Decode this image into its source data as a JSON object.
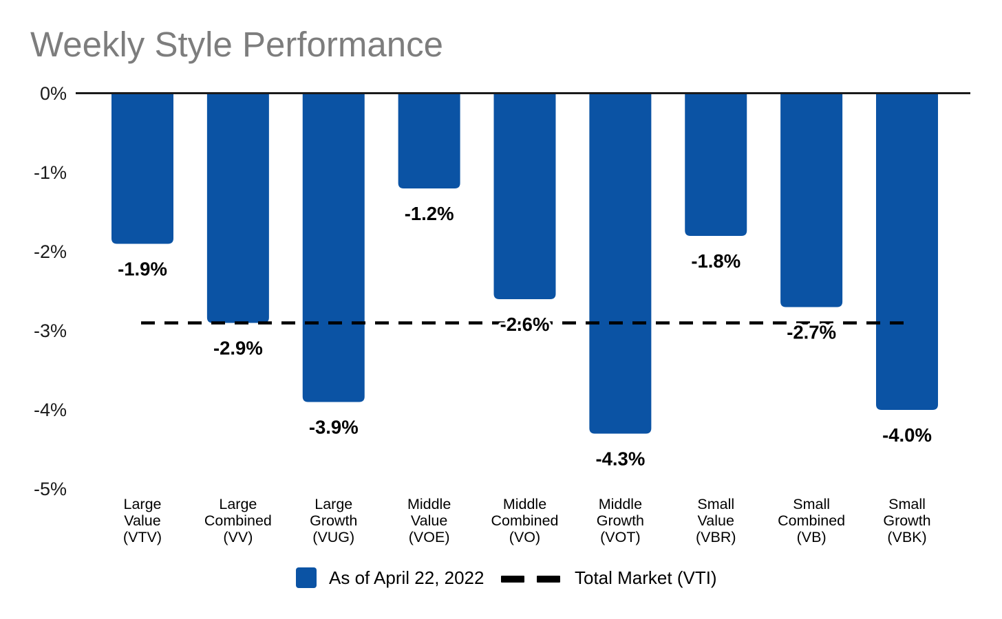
{
  "title": "Weekly Style Performance",
  "colors": {
    "bar": "#0b53a4",
    "reference_line": "#000000",
    "axis_line": "#1a1a1a",
    "tick_text": "#1a1a1a",
    "label_text": "#000000",
    "title_text": "#7d7d7d",
    "background": "#ffffff"
  },
  "legend": {
    "series_label": "As of April 22, 2022",
    "reference_label": "Total Market (VTI)"
  },
  "chart_data": {
    "type": "bar",
    "title": "Weekly Style Performance",
    "xlabel": "",
    "ylabel": "",
    "ylim": [
      -5,
      0
    ],
    "grid": false,
    "legend_position": "bottom",
    "y_ticks": [
      {
        "label": "0%",
        "value": 0
      },
      {
        "label": "-1%",
        "value": -1
      },
      {
        "label": "-2%",
        "value": -2
      },
      {
        "label": "-3%",
        "value": -3
      },
      {
        "label": "-4%",
        "value": -4
      },
      {
        "label": "-5%",
        "value": -5
      }
    ],
    "categories": [
      {
        "lines": [
          "Large",
          "Value",
          "(VTV)"
        ],
        "ticker": "VTV",
        "value": -1.9,
        "value_label": "-1.9%"
      },
      {
        "lines": [
          "Large",
          "Combined",
          "(VV)"
        ],
        "ticker": "VV",
        "value": -2.9,
        "value_label": "-2.9%"
      },
      {
        "lines": [
          "Large",
          "Growth",
          "(VUG)"
        ],
        "ticker": "VUG",
        "value": -3.9,
        "value_label": "-3.9%"
      },
      {
        "lines": [
          "Middle",
          "Value",
          "(VOE)"
        ],
        "ticker": "VOE",
        "value": -1.2,
        "value_label": "-1.2%"
      },
      {
        "lines": [
          "Middle",
          "Combined",
          "(VO)"
        ],
        "ticker": "VO",
        "value": -2.6,
        "value_label": "-2.6%"
      },
      {
        "lines": [
          "Middle",
          "Growth",
          "(VOT)"
        ],
        "ticker": "VOT",
        "value": -4.3,
        "value_label": "-4.3%"
      },
      {
        "lines": [
          "Small",
          "Value",
          "(VBR)"
        ],
        "ticker": "VBR",
        "value": -1.8,
        "value_label": "-1.8%"
      },
      {
        "lines": [
          "Small",
          "Combined",
          "(VB)"
        ],
        "ticker": "VB",
        "value": -2.7,
        "value_label": "-2.7%"
      },
      {
        "lines": [
          "Small",
          "Growth",
          "(VBK)"
        ],
        "ticker": "VBK",
        "value": -4.0,
        "value_label": "-4.0%"
      }
    ],
    "series": [
      {
        "name": "As of April 22, 2022",
        "values": [
          -1.9,
          -2.9,
          -3.9,
          -1.2,
          -2.6,
          -4.3,
          -1.8,
          -2.7,
          -4.0
        ]
      }
    ],
    "reference_line": {
      "name": "Total Market (VTI)",
      "value": -2.9
    }
  }
}
